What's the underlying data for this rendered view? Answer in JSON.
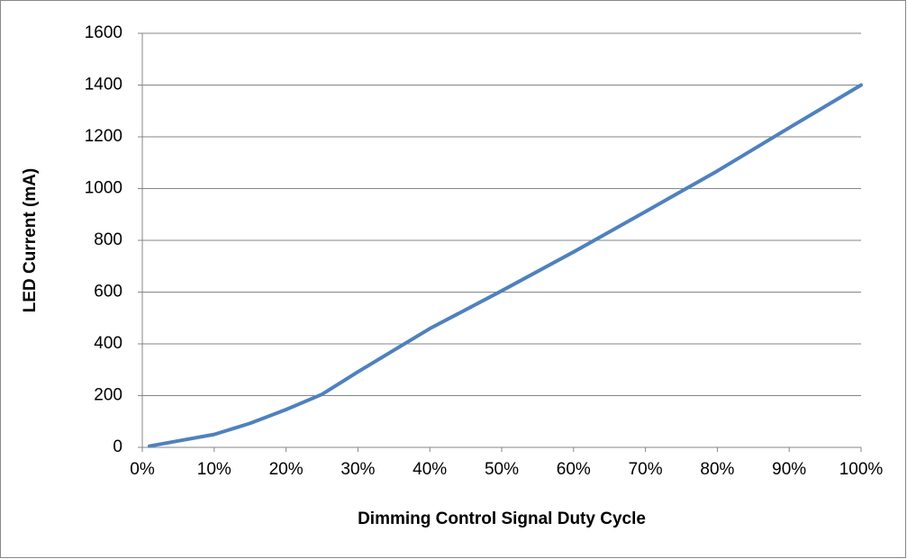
{
  "chart_data": {
    "type": "line",
    "xlabel": "Dimming Control Signal Duty Cycle",
    "ylabel": "LED Current (mA)",
    "x": [
      1,
      5,
      10,
      15,
      20,
      25,
      30,
      40,
      50,
      60,
      70,
      80,
      90,
      100
    ],
    "series": [
      {
        "name": "LED Current",
        "color": "#4f81bd",
        "values": [
          5,
          25,
          50,
          93,
          146,
          205,
          292,
          459,
          605,
          755,
          911,
          1068,
          1235,
          1400
        ]
      }
    ],
    "xlim": [
      0,
      100
    ],
    "xticks": [
      {
        "value": 0,
        "label": "0%"
      },
      {
        "value": 10,
        "label": "10%"
      },
      {
        "value": 20,
        "label": "20%"
      },
      {
        "value": 30,
        "label": "30%"
      },
      {
        "value": 40,
        "label": "40%"
      },
      {
        "value": 50,
        "label": "50%"
      },
      {
        "value": 60,
        "label": "60%"
      },
      {
        "value": 70,
        "label": "70%"
      },
      {
        "value": 80,
        "label": "80%"
      },
      {
        "value": 90,
        "label": "90%"
      },
      {
        "value": 100,
        "label": "100%"
      }
    ],
    "ylim": [
      0,
      1600
    ],
    "yticks": [
      0,
      200,
      400,
      600,
      800,
      1000,
      1200,
      1400,
      1600
    ],
    "grid": true
  }
}
